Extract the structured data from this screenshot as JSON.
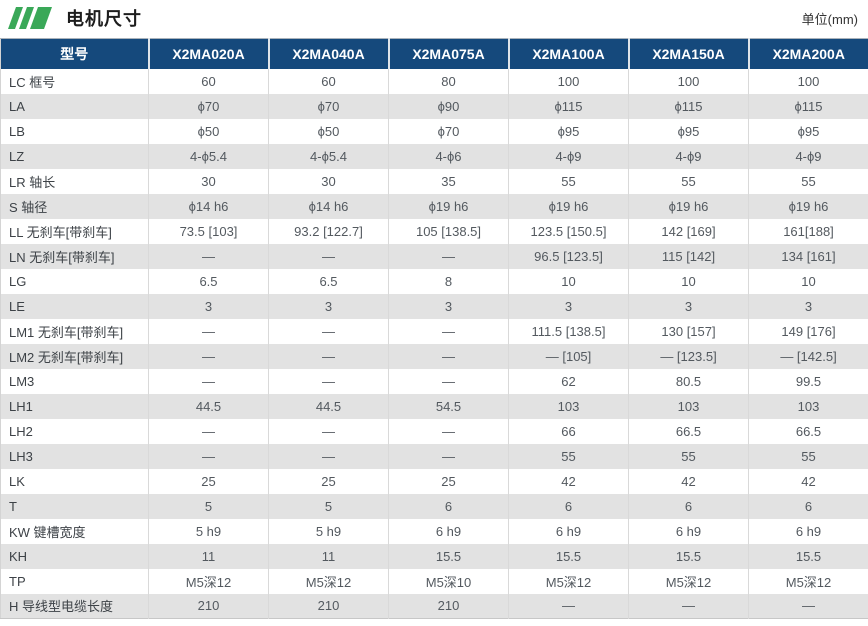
{
  "header": {
    "title": "电机尺寸",
    "unit": "单位(mm)"
  },
  "colors": {
    "header_bg": "#15497c",
    "header_text": "#ffffff",
    "zebra_stripe": "#e2e2e2",
    "accent_green": "#3aa858"
  },
  "table": {
    "columns": [
      "型号",
      "X2MA020A",
      "X2MA040A",
      "X2MA075A",
      "X2MA100A",
      "X2MA150A",
      "X2MA200A"
    ],
    "rows": [
      {
        "label": "LC 框号",
        "values": [
          "60",
          "60",
          "80",
          "100",
          "100",
          "100"
        ]
      },
      {
        "label": "LA",
        "values": [
          "ϕ70",
          "ϕ70",
          "ϕ90",
          "ϕ115",
          "ϕ115",
          "ϕ115"
        ]
      },
      {
        "label": "LB",
        "values": [
          "ϕ50",
          "ϕ50",
          "ϕ70",
          "ϕ95",
          "ϕ95",
          "ϕ95"
        ]
      },
      {
        "label": "LZ",
        "values": [
          "4-ϕ5.4",
          "4-ϕ5.4",
          "4-ϕ6",
          "4-ϕ9",
          "4-ϕ9",
          "4-ϕ9"
        ]
      },
      {
        "label": "LR 轴长",
        "values": [
          "30",
          "30",
          "35",
          "55",
          "55",
          "55"
        ]
      },
      {
        "label": "S 轴径",
        "values": [
          "ϕ14 h6",
          "ϕ14 h6",
          "ϕ19 h6",
          "ϕ19 h6",
          "ϕ19 h6",
          "ϕ19 h6"
        ]
      },
      {
        "label": "LL 无刹车[带刹车]",
        "values": [
          "73.5 [103]",
          "93.2 [122.7]",
          "105 [138.5]",
          "123.5 [150.5]",
          "142 [169]",
          "161[188]"
        ]
      },
      {
        "label": "LN 无刹车[带刹车]",
        "values": [
          "—",
          "—",
          "—",
          "96.5 [123.5]",
          "115 [142]",
          "134 [161]"
        ]
      },
      {
        "label": "LG",
        "values": [
          "6.5",
          "6.5",
          "8",
          "10",
          "10",
          "10"
        ]
      },
      {
        "label": "LE",
        "values": [
          "3",
          "3",
          "3",
          "3",
          "3",
          "3"
        ]
      },
      {
        "label": "LM1 无刹车[带刹车]",
        "values": [
          "—",
          "—",
          "—",
          "111.5 [138.5]",
          "130 [157]",
          "149 [176]"
        ]
      },
      {
        "label": "LM2 无刹车[带刹车]",
        "values": [
          "—",
          "—",
          "—",
          "— [105]",
          "— [123.5]",
          "— [142.5]"
        ]
      },
      {
        "label": "LM3",
        "values": [
          "—",
          "—",
          "—",
          "62",
          "80.5",
          "99.5"
        ]
      },
      {
        "label": "LH1",
        "values": [
          "44.5",
          "44.5",
          "54.5",
          "103",
          "103",
          "103"
        ]
      },
      {
        "label": "LH2",
        "values": [
          "—",
          "—",
          "—",
          "66",
          "66.5",
          "66.5"
        ]
      },
      {
        "label": "LH3",
        "values": [
          "—",
          "—",
          "—",
          "55",
          "55",
          "55"
        ]
      },
      {
        "label": "LK",
        "values": [
          "25",
          "25",
          "25",
          "42",
          "42",
          "42"
        ]
      },
      {
        "label": "T",
        "values": [
          "5",
          "5",
          "6",
          "6",
          "6",
          "6"
        ]
      },
      {
        "label": "KW 键槽宽度",
        "values": [
          "5 h9",
          "5 h9",
          "6 h9",
          "6 h9",
          "6 h9",
          "6 h9"
        ]
      },
      {
        "label": "KH",
        "values": [
          "11",
          "11",
          "15.5",
          "15.5",
          "15.5",
          "15.5"
        ]
      },
      {
        "label": "TP",
        "values": [
          "M5深12",
          "M5深12",
          "M5深10",
          "M5深12",
          "M5深12",
          "M5深12"
        ]
      },
      {
        "label": "H 导线型电缆长度",
        "values": [
          "210",
          "210",
          "210",
          "—",
          "—",
          "—"
        ]
      }
    ]
  }
}
